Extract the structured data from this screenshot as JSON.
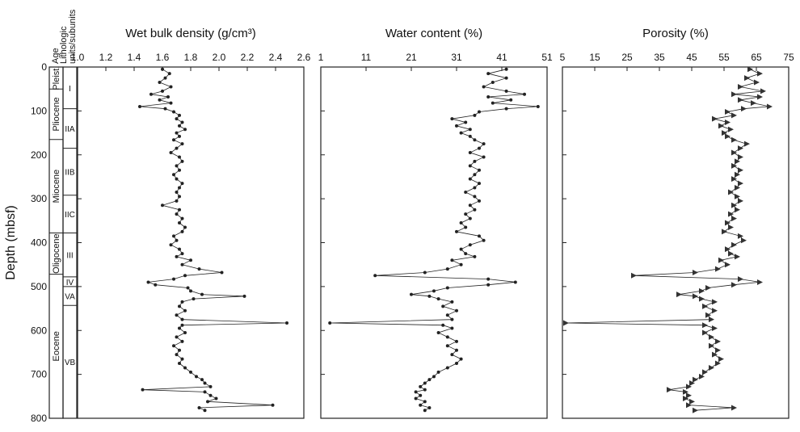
{
  "chart_data": {
    "type": "scatter",
    "ylabel": "Depth (mbsf)",
    "y_ticks": [
      "0",
      "100",
      "200",
      "300",
      "400",
      "500",
      "600",
      "700",
      "800"
    ],
    "ylim": [
      0,
      800
    ],
    "y_inverted": true,
    "strat": {
      "age_header": "Age",
      "units_header": [
        "Lithologic",
        "units/subunits"
      ],
      "ages": [
        {
          "label": "Pleist.",
          "top": 0,
          "bottom": 50
        },
        {
          "label": "Pliocene",
          "top": 50,
          "bottom": 165
        },
        {
          "label": "Miocene",
          "top": 165,
          "bottom": 378
        },
        {
          "label": "Oligocene",
          "top": 378,
          "bottom": 472
        },
        {
          "label": "Eocene",
          "top": 472,
          "bottom": 800
        }
      ],
      "units": [
        {
          "label": "I",
          "top": 0,
          "bottom": 95
        },
        {
          "label": "IIA",
          "top": 95,
          "bottom": 185
        },
        {
          "label": "IIB",
          "top": 185,
          "bottom": 292
        },
        {
          "label": "IIC",
          "top": 292,
          "bottom": 378
        },
        {
          "label": "III",
          "top": 378,
          "bottom": 478
        },
        {
          "label": "IV",
          "top": 478,
          "bottom": 500
        },
        {
          "label": "VA",
          "top": 500,
          "bottom": 543
        },
        {
          "label": "VB",
          "top": 543,
          "bottom": 800
        }
      ]
    },
    "panels": [
      {
        "title": "Wet bulk density (g/cm³)",
        "marker": "circle",
        "xlim": [
          1.0,
          2.6
        ],
        "x_ticks": [
          "1.0",
          "1.2",
          "1.4",
          "1.6",
          "1.8",
          "2.0",
          "2.2",
          "2.4",
          "2.6"
        ],
        "points": [
          [
            5,
            1.6
          ],
          [
            15,
            1.65
          ],
          [
            25,
            1.62
          ],
          [
            35,
            1.58
          ],
          [
            45,
            1.66
          ],
          [
            55,
            1.6
          ],
          [
            62,
            1.52
          ],
          [
            68,
            1.64
          ],
          [
            75,
            1.58
          ],
          [
            82,
            1.66
          ],
          [
            90,
            1.44
          ],
          [
            95,
            1.62
          ],
          [
            102,
            1.68
          ],
          [
            110,
            1.72
          ],
          [
            118,
            1.7
          ],
          [
            126,
            1.74
          ],
          [
            134,
            1.72
          ],
          [
            142,
            1.76
          ],
          [
            150,
            1.7
          ],
          [
            158,
            1.72
          ],
          [
            166,
            1.68
          ],
          [
            175,
            1.74
          ],
          [
            185,
            1.7
          ],
          [
            195,
            1.66
          ],
          [
            205,
            1.72
          ],
          [
            215,
            1.74
          ],
          [
            225,
            1.7
          ],
          [
            235,
            1.72
          ],
          [
            245,
            1.68
          ],
          [
            255,
            1.7
          ],
          [
            265,
            1.74
          ],
          [
            275,
            1.72
          ],
          [
            285,
            1.7
          ],
          [
            295,
            1.72
          ],
          [
            305,
            1.7
          ],
          [
            315,
            1.6
          ],
          [
            325,
            1.72
          ],
          [
            335,
            1.7
          ],
          [
            345,
            1.74
          ],
          [
            355,
            1.72
          ],
          [
            365,
            1.76
          ],
          [
            375,
            1.74
          ],
          [
            385,
            1.68
          ],
          [
            395,
            1.7
          ],
          [
            405,
            1.66
          ],
          [
            415,
            1.72
          ],
          [
            425,
            1.74
          ],
          [
            432,
            1.7
          ],
          [
            440,
            1.8
          ],
          [
            450,
            1.74
          ],
          [
            460,
            1.86
          ],
          [
            468,
            2.02
          ],
          [
            475,
            1.76
          ],
          [
            483,
            1.68
          ],
          [
            490,
            1.5
          ],
          [
            496,
            1.55
          ],
          [
            503,
            1.78
          ],
          [
            510,
            1.8
          ],
          [
            518,
            1.88
          ],
          [
            522,
            2.18
          ],
          [
            528,
            1.82
          ],
          [
            535,
            1.74
          ],
          [
            545,
            1.72
          ],
          [
            555,
            1.76
          ],
          [
            565,
            1.7
          ],
          [
            575,
            1.74
          ],
          [
            583,
            2.48
          ],
          [
            588,
            1.74
          ],
          [
            595,
            1.72
          ],
          [
            605,
            1.76
          ],
          [
            615,
            1.7
          ],
          [
            625,
            1.74
          ],
          [
            635,
            1.68
          ],
          [
            645,
            1.72
          ],
          [
            655,
            1.7
          ],
          [
            665,
            1.74
          ],
          [
            675,
            1.72
          ],
          [
            685,
            1.76
          ],
          [
            695,
            1.8
          ],
          [
            705,
            1.84
          ],
          [
            712,
            1.88
          ],
          [
            720,
            1.9
          ],
          [
            728,
            1.94
          ],
          [
            735,
            1.46
          ],
          [
            740,
            1.9
          ],
          [
            748,
            1.94
          ],
          [
            755,
            1.98
          ],
          [
            762,
            1.92
          ],
          [
            770,
            2.38
          ],
          [
            776,
            1.86
          ],
          [
            782,
            1.9
          ]
        ]
      },
      {
        "title": "Water content (%)",
        "marker": "circle",
        "xlim": [
          1,
          51
        ],
        "x_ticks": [
          "1",
          "11",
          "21",
          "31",
          "41",
          "51"
        ],
        "points": [
          [
            5,
            42
          ],
          [
            15,
            38
          ],
          [
            25,
            42
          ],
          [
            35,
            39
          ],
          [
            45,
            37
          ],
          [
            55,
            42
          ],
          [
            62,
            46
          ],
          [
            68,
            38
          ],
          [
            75,
            43
          ],
          [
            82,
            39
          ],
          [
            90,
            49
          ],
          [
            95,
            42
          ],
          [
            102,
            36
          ],
          [
            110,
            35
          ],
          [
            118,
            30
          ],
          [
            126,
            33
          ],
          [
            134,
            31
          ],
          [
            142,
            34
          ],
          [
            150,
            32
          ],
          [
            158,
            34
          ],
          [
            166,
            35
          ],
          [
            175,
            37
          ],
          [
            185,
            36
          ],
          [
            195,
            34
          ],
          [
            205,
            37
          ],
          [
            215,
            35
          ],
          [
            225,
            34
          ],
          [
            235,
            36
          ],
          [
            245,
            35
          ],
          [
            255,
            34
          ],
          [
            265,
            36
          ],
          [
            275,
            35
          ],
          [
            285,
            33
          ],
          [
            295,
            35
          ],
          [
            305,
            36
          ],
          [
            315,
            34
          ],
          [
            325,
            35
          ],
          [
            335,
            33
          ],
          [
            345,
            34
          ],
          [
            355,
            32
          ],
          [
            365,
            33
          ],
          [
            375,
            31
          ],
          [
            385,
            36
          ],
          [
            395,
            37
          ],
          [
            405,
            34
          ],
          [
            415,
            32
          ],
          [
            425,
            33
          ],
          [
            432,
            35
          ],
          [
            440,
            30
          ],
          [
            450,
            32
          ],
          [
            460,
            29
          ],
          [
            468,
            24
          ],
          [
            475,
            13
          ],
          [
            483,
            38
          ],
          [
            490,
            44
          ],
          [
            496,
            38
          ],
          [
            503,
            29
          ],
          [
            510,
            26
          ],
          [
            518,
            21
          ],
          [
            522,
            25
          ],
          [
            528,
            27
          ],
          [
            535,
            30
          ],
          [
            545,
            28
          ],
          [
            555,
            31
          ],
          [
            565,
            29
          ],
          [
            575,
            30
          ],
          [
            583,
            3
          ],
          [
            588,
            28
          ],
          [
            595,
            30
          ],
          [
            605,
            27
          ],
          [
            615,
            29
          ],
          [
            625,
            31
          ],
          [
            635,
            29
          ],
          [
            645,
            31
          ],
          [
            655,
            30
          ],
          [
            665,
            32
          ],
          [
            675,
            31
          ],
          [
            685,
            29
          ],
          [
            695,
            27
          ],
          [
            705,
            26
          ],
          [
            712,
            25
          ],
          [
            720,
            24
          ],
          [
            728,
            23
          ],
          [
            735,
            24
          ],
          [
            740,
            22
          ],
          [
            748,
            23
          ],
          [
            755,
            22
          ],
          [
            762,
            24
          ],
          [
            770,
            23
          ],
          [
            776,
            25
          ],
          [
            782,
            24
          ]
        ]
      },
      {
        "title": "Porosity (%)",
        "marker": "triangle",
        "xlim": [
          5,
          75
        ],
        "x_ticks": [
          "5",
          "15",
          "25",
          "35",
          "45",
          "55",
          "65",
          "75"
        ],
        "points": [
          [
            5,
            63
          ],
          [
            15,
            66
          ],
          [
            25,
            62
          ],
          [
            35,
            65
          ],
          [
            45,
            60
          ],
          [
            55,
            67
          ],
          [
            62,
            58
          ],
          [
            68,
            66
          ],
          [
            75,
            60
          ],
          [
            82,
            64
          ],
          [
            90,
            69
          ],
          [
            95,
            61
          ],
          [
            102,
            56
          ],
          [
            110,
            58
          ],
          [
            118,
            52
          ],
          [
            126,
            56
          ],
          [
            134,
            54
          ],
          [
            142,
            57
          ],
          [
            150,
            55
          ],
          [
            158,
            56
          ],
          [
            166,
            58
          ],
          [
            175,
            62
          ],
          [
            185,
            60
          ],
          [
            195,
            58
          ],
          [
            205,
            60
          ],
          [
            215,
            59
          ],
          [
            225,
            58
          ],
          [
            235,
            60
          ],
          [
            245,
            59
          ],
          [
            255,
            58
          ],
          [
            265,
            60
          ],
          [
            275,
            59
          ],
          [
            285,
            57
          ],
          [
            295,
            59
          ],
          [
            305,
            60
          ],
          [
            315,
            58
          ],
          [
            325,
            59
          ],
          [
            335,
            57
          ],
          [
            345,
            58
          ],
          [
            355,
            56
          ],
          [
            365,
            57
          ],
          [
            375,
            55
          ],
          [
            385,
            60
          ],
          [
            395,
            61
          ],
          [
            405,
            58
          ],
          [
            415,
            56
          ],
          [
            425,
            57
          ],
          [
            432,
            59
          ],
          [
            440,
            54
          ],
          [
            450,
            56
          ],
          [
            460,
            53
          ],
          [
            468,
            46
          ],
          [
            475,
            27
          ],
          [
            483,
            60
          ],
          [
            490,
            66
          ],
          [
            496,
            58
          ],
          [
            503,
            50
          ],
          [
            510,
            48
          ],
          [
            518,
            41
          ],
          [
            522,
            46
          ],
          [
            528,
            48
          ],
          [
            535,
            52
          ],
          [
            545,
            49
          ],
          [
            555,
            52
          ],
          [
            565,
            50
          ],
          [
            575,
            51
          ],
          [
            583,
            6
          ],
          [
            588,
            49
          ],
          [
            595,
            52
          ],
          [
            605,
            49
          ],
          [
            615,
            51
          ],
          [
            625,
            53
          ],
          [
            635,
            51
          ],
          [
            645,
            53
          ],
          [
            655,
            52
          ],
          [
            665,
            54
          ],
          [
            675,
            53
          ],
          [
            685,
            51
          ],
          [
            695,
            49
          ],
          [
            705,
            48
          ],
          [
            712,
            46
          ],
          [
            720,
            45
          ],
          [
            728,
            44
          ],
          [
            735,
            38
          ],
          [
            740,
            43
          ],
          [
            748,
            44
          ],
          [
            755,
            43
          ],
          [
            762,
            45
          ],
          [
            770,
            44
          ],
          [
            776,
            58
          ],
          [
            782,
            46
          ]
        ]
      }
    ]
  }
}
